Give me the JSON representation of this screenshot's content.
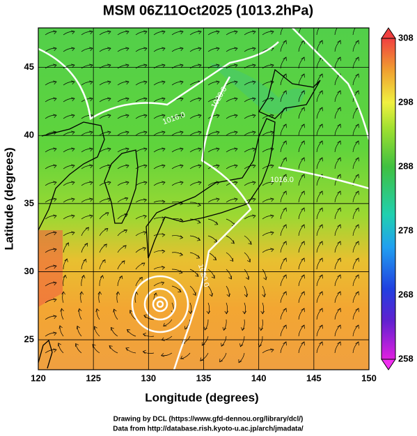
{
  "chart_data": {
    "type": "field",
    "title": "MSM 06Z11Oct2025 (1013.2hPa)",
    "x_label": "Longitude (degrees)",
    "y_label": "Latitude  (degrees)",
    "xlim": [
      120,
      150
    ],
    "xticks": [
      120,
      125,
      130,
      135,
      140,
      145,
      150
    ],
    "ylim": [
      22.8,
      47.9
    ],
    "yticks": [
      25,
      30,
      35,
      40,
      45
    ],
    "clim": [
      258,
      308
    ],
    "cticks": [
      258,
      268,
      278,
      288,
      298,
      308
    ],
    "annotations": [
      "1016.0",
      "1020.0",
      "1020.0",
      "1016.0"
    ],
    "credits": [
      "Drawing by DCL (https://www.gfd-dennou.org/library/dcl/)",
      "Data from http://database.rish.kyoto-u.ac.jp/arch/jmadata/"
    ]
  }
}
